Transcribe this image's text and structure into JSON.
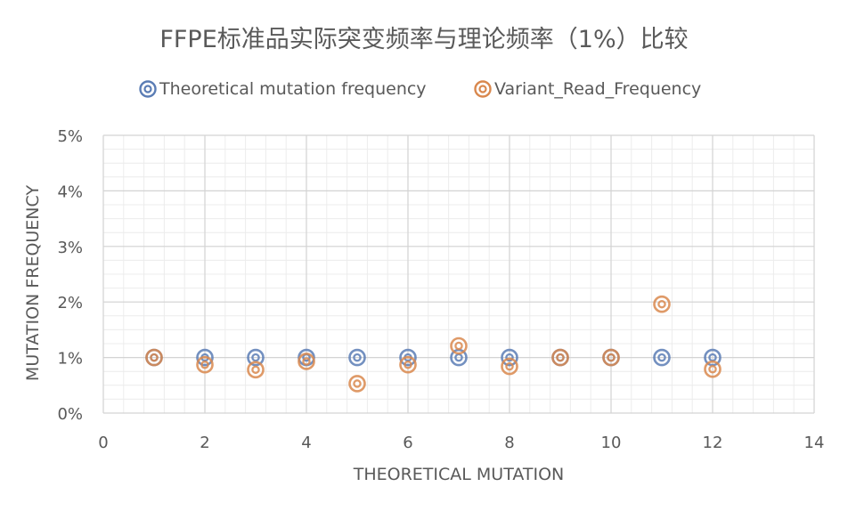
{
  "chart_data": {
    "type": "scatter",
    "title": "FFPE标准品实际突变频率与理论频率（1%）比较",
    "xlabel": "THEORETICAL MUTATION",
    "ylabel": "MUTATION FREQUENCY",
    "xlim": [
      0,
      14
    ],
    "ylim": [
      0,
      0.05
    ],
    "x_ticks": [
      "0",
      "2",
      "4",
      "6",
      "8",
      "10",
      "12",
      "14"
    ],
    "y_ticks": [
      "0%",
      "1%",
      "2%",
      "3%",
      "4%",
      "5%"
    ],
    "grid": true,
    "legend_position": "top",
    "series": [
      {
        "name": "Theoretical mutation frequency",
        "color": "#5B7DB5",
        "marker": "double-circle",
        "points": [
          {
            "x": 1,
            "y": 0.01
          },
          {
            "x": 2,
            "y": 0.01
          },
          {
            "x": 3,
            "y": 0.01
          },
          {
            "x": 4,
            "y": 0.01
          },
          {
            "x": 5,
            "y": 0.01
          },
          {
            "x": 6,
            "y": 0.01
          },
          {
            "x": 7,
            "y": 0.01
          },
          {
            "x": 8,
            "y": 0.01
          },
          {
            "x": 9,
            "y": 0.01
          },
          {
            "x": 10,
            "y": 0.01
          },
          {
            "x": 11,
            "y": 0.01
          },
          {
            "x": 12,
            "y": 0.01
          }
        ]
      },
      {
        "name": "Variant_Read_Frequency",
        "color": "#D9884E",
        "marker": "double-circle",
        "points": [
          {
            "x": 1,
            "y": 0.01
          },
          {
            "x": 2,
            "y": 0.0087
          },
          {
            "x": 3,
            "y": 0.0078
          },
          {
            "x": 4,
            "y": 0.0093
          },
          {
            "x": 5,
            "y": 0.0053
          },
          {
            "x": 6,
            "y": 0.0087
          },
          {
            "x": 7,
            "y": 0.0121
          },
          {
            "x": 8,
            "y": 0.0084
          },
          {
            "x": 9,
            "y": 0.01
          },
          {
            "x": 10,
            "y": 0.01
          },
          {
            "x": 11,
            "y": 0.0196
          },
          {
            "x": 12,
            "y": 0.0079
          }
        ]
      }
    ]
  }
}
